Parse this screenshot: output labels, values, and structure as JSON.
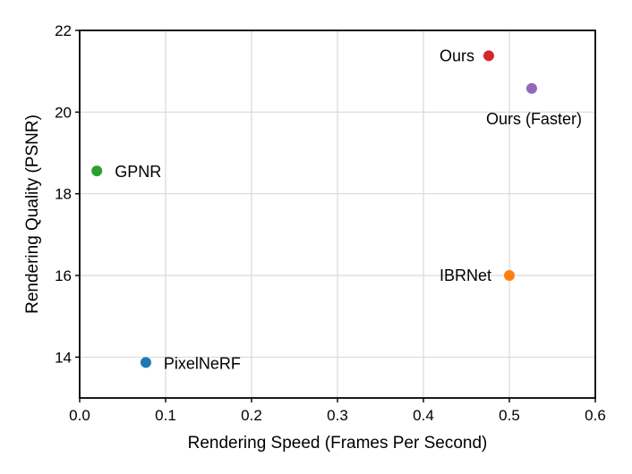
{
  "chart_data": {
    "type": "scatter",
    "title": "",
    "xlabel": "Rendering Speed (Frames Per Second)",
    "ylabel": "Rendering Quality (PSNR)",
    "xlim": [
      0.0,
      0.6
    ],
    "ylim": [
      13,
      22
    ],
    "xticks": [
      "0.0",
      "0.1",
      "0.2",
      "0.3",
      "0.4",
      "0.5",
      "0.6"
    ],
    "yticks": [
      "14",
      "16",
      "18",
      "20",
      "22"
    ],
    "grid": true,
    "legend": "none",
    "points": [
      {
        "label": "Ours",
        "x": 0.476,
        "y": 21.38,
        "color": "#d62728"
      },
      {
        "label": "Ours (Faster)",
        "x": 0.526,
        "y": 20.58,
        "color": "#9467bd"
      },
      {
        "label": "GPNR",
        "x": 0.02,
        "y": 18.56,
        "color": "#2ca02c"
      },
      {
        "label": "IBRNet",
        "x": 0.5,
        "y": 16.0,
        "color": "#ff7f0e"
      },
      {
        "label": "PixelNeRF",
        "x": 0.077,
        "y": 13.87,
        "color": "#1f77b4"
      }
    ]
  }
}
